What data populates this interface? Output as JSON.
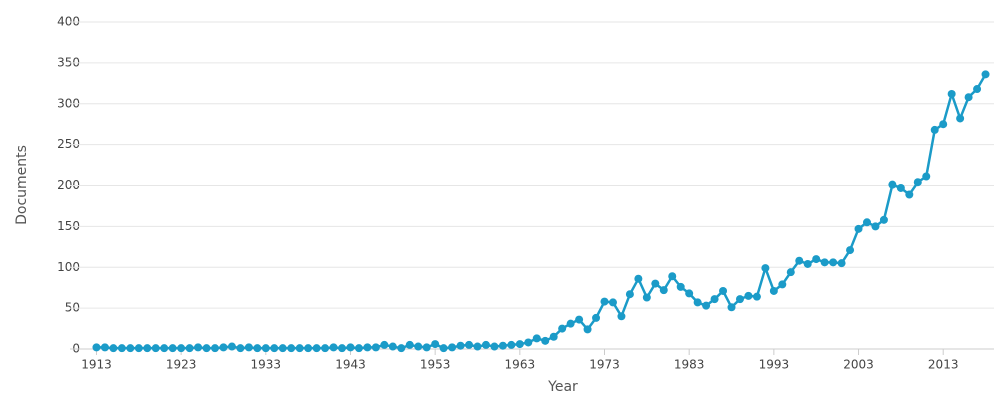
{
  "chart_data": {
    "type": "line",
    "x_label": "Year",
    "y_label": "Documents",
    "x": [
      1913,
      1914,
      1915,
      1916,
      1917,
      1918,
      1919,
      1920,
      1921,
      1922,
      1923,
      1924,
      1925,
      1926,
      1927,
      1928,
      1929,
      1930,
      1931,
      1932,
      1933,
      1934,
      1935,
      1936,
      1937,
      1938,
      1939,
      1940,
      1941,
      1942,
      1943,
      1944,
      1945,
      1946,
      1947,
      1948,
      1949,
      1950,
      1951,
      1952,
      1953,
      1954,
      1955,
      1956,
      1957,
      1958,
      1959,
      1960,
      1961,
      1962,
      1963,
      1964,
      1965,
      1966,
      1967,
      1968,
      1969,
      1970,
      1971,
      1972,
      1973,
      1974,
      1975,
      1976,
      1977,
      1978,
      1979,
      1980,
      1981,
      1982,
      1983,
      1984,
      1985,
      1986,
      1987,
      1988,
      1989,
      1990,
      1991,
      1992,
      1993,
      1994,
      1995,
      1996,
      1997,
      1998,
      1999,
      2000,
      2001,
      2002,
      2003,
      2004,
      2005,
      2006,
      2007,
      2008,
      2009,
      2010,
      2011,
      2012,
      2013,
      2014,
      2015,
      2016,
      2017,
      2018
    ],
    "series": [
      {
        "name": "Documents",
        "color": "#1b9bc8",
        "values": [
          2,
          2,
          1,
          1,
          1,
          1,
          1,
          1,
          1,
          1,
          1,
          1,
          2,
          1,
          1,
          2,
          3,
          1,
          2,
          1,
          1,
          1,
          1,
          1,
          1,
          1,
          1,
          1,
          2,
          1,
          2,
          1,
          2,
          2,
          5,
          3,
          1,
          5,
          3,
          2,
          6,
          1,
          2,
          4,
          5,
          3,
          5,
          3,
          4,
          5,
          6,
          8,
          13,
          10,
          15,
          25,
          31,
          36,
          24,
          38,
          58,
          57,
          40,
          67,
          86,
          63,
          80,
          72,
          89,
          76,
          68,
          57,
          53,
          61,
          71,
          51,
          61,
          65,
          64,
          99,
          71,
          79,
          94,
          108,
          104,
          110,
          106,
          106,
          105,
          121,
          147,
          155,
          150,
          158,
          201,
          197,
          189,
          204,
          211,
          268,
          275,
          312,
          282,
          308,
          318,
          336
        ]
      }
    ],
    "xlim": [
      1912,
      2019
    ],
    "xticks": [
      1913,
      1923,
      1933,
      1943,
      1953,
      1963,
      1973,
      1983,
      1993,
      2003,
      2013
    ],
    "ylim": [
      0,
      400
    ],
    "yticks": [
      0,
      50,
      100,
      150,
      200,
      250,
      300,
      350,
      400
    ],
    "grid": true
  }
}
